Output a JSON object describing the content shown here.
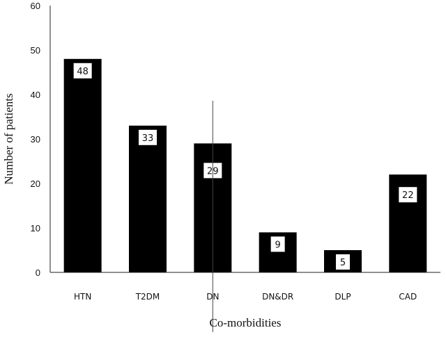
{
  "chart_data": {
    "type": "bar",
    "categories": [
      "HTN",
      "T2DM",
      "DN",
      "DN&DR",
      "DLP",
      "CAD"
    ],
    "values": [
      48,
      33,
      29,
      9,
      5,
      22
    ],
    "data_labels": [
      "48",
      "33",
      "29",
      "9",
      "5",
      "22"
    ],
    "title": "",
    "xlabel": "Co-morbidities",
    "ylabel": "Number of patients",
    "ylim": [
      0,
      60
    ],
    "yticks": [
      "0",
      "10",
      "20",
      "30",
      "40",
      "50",
      "60"
    ],
    "grid": false,
    "legend": "none",
    "bar_color": "#000000",
    "label_box_color": "#ffffff"
  }
}
